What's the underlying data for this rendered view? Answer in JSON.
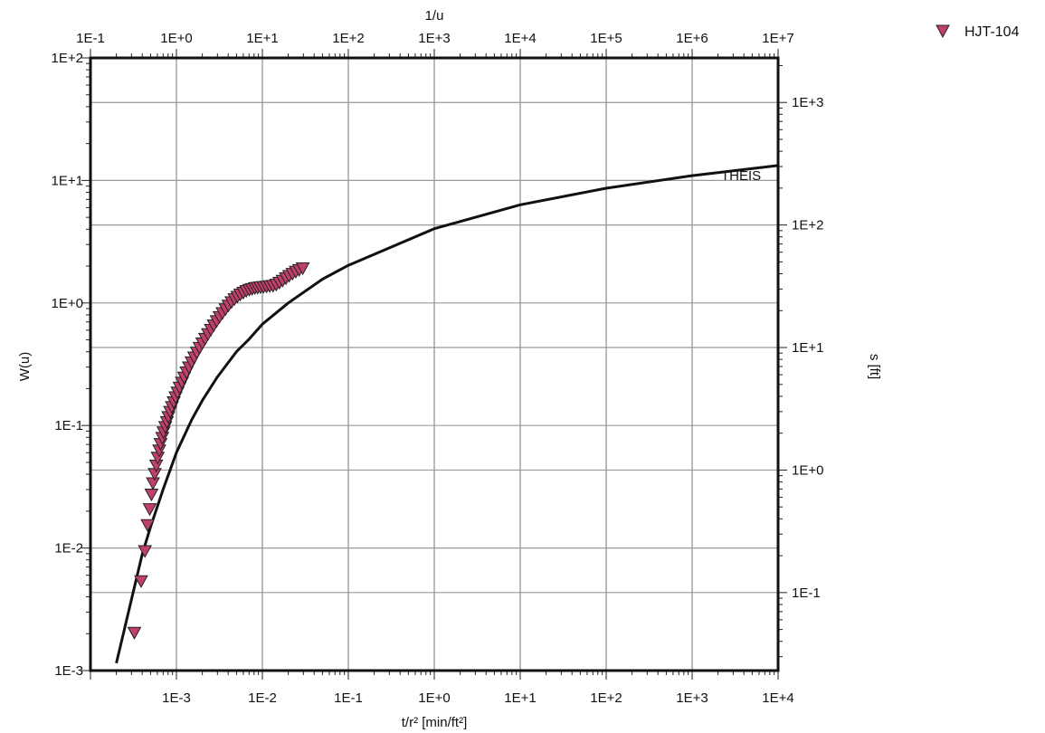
{
  "chart_data": {
    "type": "scatter",
    "title": "",
    "xlabel": "t/r² [min/ft²]",
    "ylabel": "W(u)",
    "x2label": "1/u",
    "y2label": "s [ft]",
    "x_scale": "log",
    "y_scale": "log",
    "xlim": [
      0.0001,
      10000
    ],
    "ylim": [
      0.001,
      100
    ],
    "x_ticks": [
      "1E-3",
      "1E-2",
      "1E-1",
      "1E+0",
      "1E+1",
      "1E+2",
      "1E+3",
      "1E+4"
    ],
    "y_ticks": [
      "1E-3",
      "1E-2",
      "1E-1",
      "1E+0",
      "1E+1",
      "1E+2"
    ],
    "x2lim": [
      0.1,
      10000000
    ],
    "x2_ticks": [
      "1E-1",
      "1E+0",
      "1E+1",
      "1E+2",
      "1E+3",
      "1E+4",
      "1E+5",
      "1E+6",
      "1E+7"
    ],
    "y2lim": [
      0.0231,
      2310
    ],
    "y2_ticks": [
      "1E-1",
      "1E+0",
      "1E+1",
      "1E+2",
      "1E+3"
    ],
    "grid": true,
    "legend": "top-right",
    "colors": {
      "data": "#c0406a",
      "curve": "#111111",
      "grid": "#9a9a9a"
    },
    "curve": {
      "name": "THEIS",
      "inv_u": [
        0.2,
        0.3,
        0.4,
        0.5,
        0.7,
        1,
        1.5,
        2,
        3,
        5,
        7,
        10,
        20,
        50,
        100,
        1000,
        10000,
        100000,
        1000000,
        10000000
      ],
      "W": [
        0.00115,
        0.0038,
        0.0089,
        0.0149,
        0.0301,
        0.0601,
        0.1108,
        0.1599,
        0.2491,
        0.4003,
        0.5069,
        0.6717,
        1.0002,
        1.5628,
        2.0282,
        4.0379,
        6.3315,
        8.6332,
        10.9357,
        13.2383
      ]
    },
    "series": [
      {
        "name": "HJT-104",
        "marker": "triangle-down",
        "x": [
          0.000324,
          0.000388,
          0.00043,
          0.000461,
          0.000489,
          0.000512,
          0.000533,
          0.000559,
          0.000582,
          0.000606,
          0.000631,
          0.000653,
          0.000683,
          0.000708,
          0.000741,
          0.000775,
          0.000806,
          0.000845,
          0.000886,
          0.00093,
          0.000977,
          0.00103,
          0.00109,
          0.00116,
          0.00123,
          0.00131,
          0.0014,
          0.0015,
          0.00161,
          0.00173,
          0.00186,
          0.002,
          0.00216,
          0.00233,
          0.00252,
          0.00272,
          0.00294,
          0.00318,
          0.00344,
          0.00373,
          0.00403,
          0.00437,
          0.00473,
          0.00512,
          0.00554,
          0.006,
          0.0065,
          0.00705,
          0.0076,
          0.0082,
          0.0088,
          0.0095,
          0.0103,
          0.0112,
          0.0122,
          0.0133,
          0.0145,
          0.0158,
          0.0172,
          0.0188,
          0.0205,
          0.0224,
          0.0245,
          0.0268,
          0.0295
        ],
        "y": [
          0.00205,
          0.0054,
          0.0095,
          0.0155,
          0.0209,
          0.0275,
          0.034,
          0.0405,
          0.0475,
          0.055,
          0.063,
          0.0712,
          0.0798,
          0.0885,
          0.0978,
          0.1075,
          0.118,
          0.13,
          0.1425,
          0.156,
          0.171,
          0.187,
          0.205,
          0.225,
          0.248,
          0.273,
          0.3,
          0.33,
          0.362,
          0.396,
          0.433,
          0.472,
          0.514,
          0.56,
          0.608,
          0.66,
          0.715,
          0.772,
          0.832,
          0.895,
          0.958,
          1.02,
          1.08,
          1.13,
          1.18,
          1.22,
          1.26,
          1.29,
          1.31,
          1.33,
          1.34,
          1.35,
          1.36,
          1.37,
          1.38,
          1.39,
          1.42,
          1.47,
          1.53,
          1.6,
          1.67,
          1.74,
          1.81,
          1.87,
          1.93
        ]
      }
    ]
  }
}
